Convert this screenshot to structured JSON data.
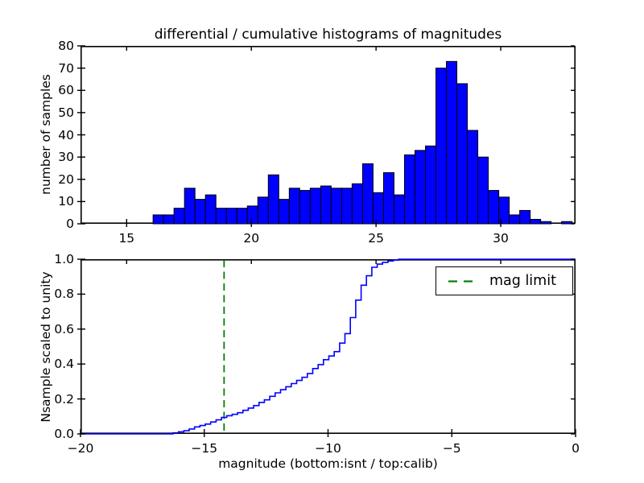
{
  "figure": {
    "background": "#ffffff",
    "axis_color": "#000000",
    "text_color": "#000000"
  },
  "chart_data": [
    {
      "type": "bar",
      "role": "differential-histogram-top",
      "title": "differential / cumulative histograms of magnitudes",
      "ylabel": "number of samples",
      "xlim": [
        13.15,
        33.0
      ],
      "ylim": [
        0,
        80
      ],
      "grid": false,
      "xticks": [
        {
          "value": 15,
          "label": "15"
        },
        {
          "value": 20,
          "label": "20"
        },
        {
          "value": 25,
          "label": "25"
        },
        {
          "value": 30,
          "label": "30"
        }
      ],
      "yticks": [
        {
          "value": 0,
          "label": "0"
        },
        {
          "value": 10,
          "label": "10"
        },
        {
          "value": 20,
          "label": "20"
        },
        {
          "value": 30,
          "label": "30"
        },
        {
          "value": 40,
          "label": "40"
        },
        {
          "value": 50,
          "label": "50"
        },
        {
          "value": 60,
          "label": "60"
        },
        {
          "value": 70,
          "label": "70"
        },
        {
          "value": 80,
          "label": "80"
        }
      ],
      "bin_start": 16.06,
      "bin_width": 0.42,
      "counts": [
        4,
        4,
        7,
        16,
        11,
        13,
        7,
        7,
        7,
        8,
        12,
        22,
        11,
        16,
        15,
        16,
        17,
        16,
        16,
        18,
        27,
        14,
        23,
        13,
        31,
        33,
        35,
        70,
        73,
        63,
        42,
        30,
        15,
        12,
        4,
        6,
        2,
        1,
        0,
        1
      ],
      "bar_color": "#0000ff",
      "bar_edge_color": "#000000"
    },
    {
      "type": "line",
      "role": "cumulative-histogram-bottom",
      "style": "step",
      "ylabel": "Nsample scaled to unity",
      "xlabel": "magnitude (bottom:isnt / top:calib)",
      "xlim": [
        -20,
        0
      ],
      "ylim": [
        0.0,
        1.0
      ],
      "grid": false,
      "xticks": [
        {
          "value": -20,
          "label": "−20"
        },
        {
          "value": -15,
          "label": "−15"
        },
        {
          "value": -10,
          "label": "−10"
        },
        {
          "value": -5,
          "label": "−5"
        },
        {
          "value": 0,
          "label": "0"
        }
      ],
      "yticks": [
        {
          "value": 0.0,
          "label": "0.0"
        },
        {
          "value": 0.2,
          "label": "0.2"
        },
        {
          "value": 0.4,
          "label": "0.4"
        },
        {
          "value": 0.6,
          "label": "0.6"
        },
        {
          "value": 0.8,
          "label": "0.8"
        },
        {
          "value": 1.0,
          "label": "1.0"
        }
      ],
      "top_axis_ticks_calib": [
        15,
        20,
        25,
        30
      ],
      "step_start": -16.26,
      "step_width": 0.217,
      "step_values": [
        0.006,
        0.012,
        0.018,
        0.028,
        0.04,
        0.048,
        0.056,
        0.068,
        0.08,
        0.094,
        0.104,
        0.112,
        0.121,
        0.135,
        0.148,
        0.162,
        0.18,
        0.195,
        0.215,
        0.235,
        0.253,
        0.27,
        0.288,
        0.306,
        0.324,
        0.345,
        0.374,
        0.397,
        0.425,
        0.446,
        0.471,
        0.52,
        0.574,
        0.666,
        0.766,
        0.851,
        0.905,
        0.954,
        0.972,
        0.982,
        0.99,
        0.995,
        1.0
      ],
      "line_color": "#0000ff",
      "mag_limit": {
        "value": -14.2,
        "color": "#008000",
        "line_style": "dashed",
        "label": "mag limit"
      },
      "legend": {
        "label": "mag limit",
        "position": "upper right"
      }
    }
  ]
}
